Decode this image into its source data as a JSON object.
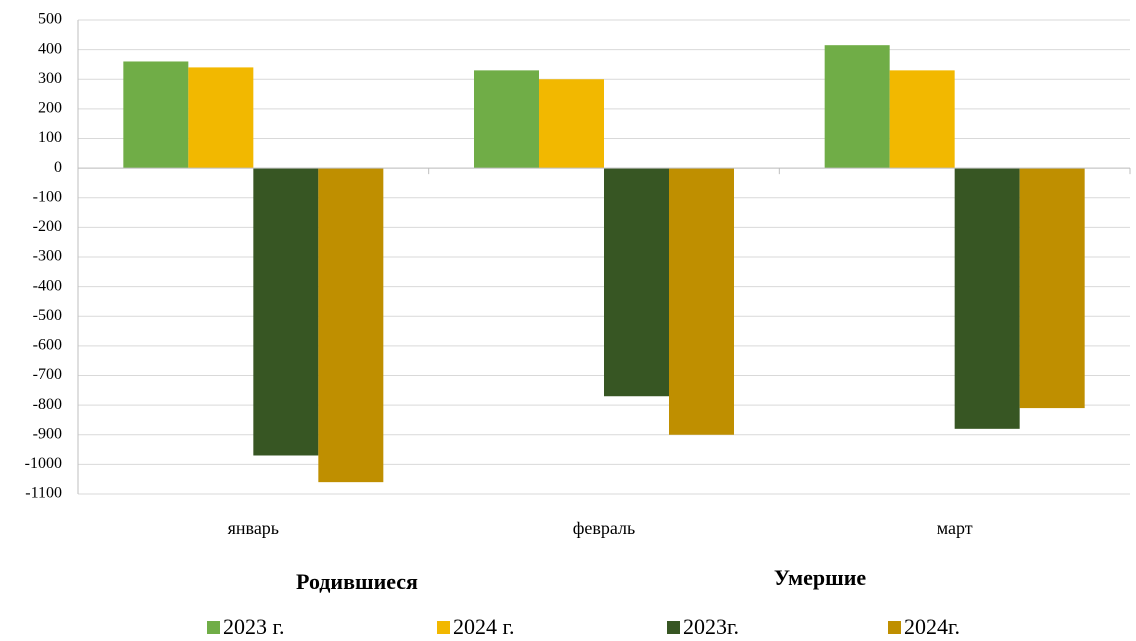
{
  "chart_data": {
    "type": "bar",
    "categories": [
      "январь",
      "февраль",
      "март"
    ],
    "series": [
      {
        "name": "2023 г.",
        "color": "#70ad47",
        "values": [
          360,
          330,
          415
        ]
      },
      {
        "name": "2024 г.",
        "color": "#f2b800",
        "values": [
          340,
          300,
          330
        ]
      },
      {
        "name": "2023г.",
        "color": "#375623",
        "values": [
          -970,
          -770,
          -880
        ]
      },
      {
        "name": "2024г.",
        "color": "#bf8f00",
        "values": [
          -1060,
          -900,
          -810
        ]
      }
    ],
    "group_labels": [
      "Родившиеся",
      "Умершие"
    ],
    "ylim": [
      -1100,
      500
    ],
    "yticks": [
      -1100,
      -1000,
      -900,
      -800,
      -700,
      -600,
      -500,
      -400,
      -300,
      -200,
      -100,
      0,
      100,
      200,
      300,
      400,
      500
    ],
    "grid": true
  }
}
